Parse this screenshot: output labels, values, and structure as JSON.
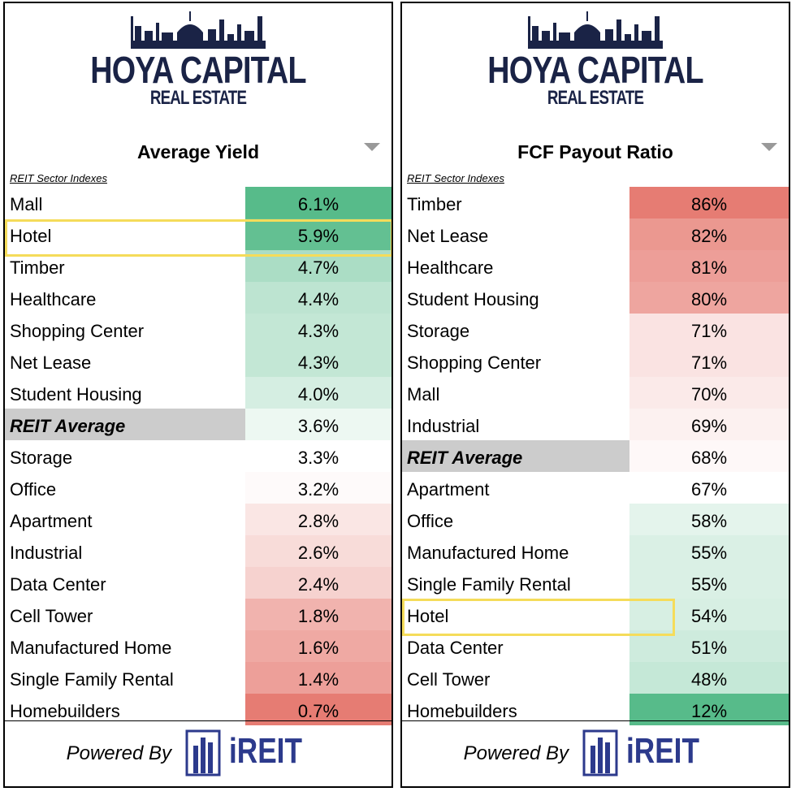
{
  "brand": {
    "line1": "HOYA CAPITAL",
    "line2": "REAL ESTATE"
  },
  "footer": {
    "powered_by": "Powered By",
    "ireit": "iREIT"
  },
  "colors": {
    "brand_navy": "#1a2346",
    "ireit_blue": "#2c3a8c",
    "high_green": "#57bb8a",
    "low_red": "#e67c73",
    "highlight": "#f5dc5a"
  },
  "left": {
    "title": "Average Yield",
    "subtitle": "REIT Sector Indexes",
    "rows": [
      {
        "name": "Mall",
        "value": "6.1%"
      },
      {
        "name": "Hotel",
        "value": "5.9%"
      },
      {
        "name": "Timber",
        "value": "4.7%"
      },
      {
        "name": "Healthcare",
        "value": "4.4%"
      },
      {
        "name": "Shopping Center",
        "value": "4.3%"
      },
      {
        "name": "Net Lease",
        "value": "4.3%"
      },
      {
        "name": "Student Housing",
        "value": "4.0%"
      },
      {
        "name": "REIT Average",
        "value": "3.6%"
      },
      {
        "name": "Storage",
        "value": "3.3%"
      },
      {
        "name": "Office",
        "value": "3.2%"
      },
      {
        "name": "Apartment",
        "value": "2.8%"
      },
      {
        "name": "Industrial",
        "value": "2.6%"
      },
      {
        "name": "Data Center",
        "value": "2.4%"
      },
      {
        "name": "Cell Tower",
        "value": "1.8%"
      },
      {
        "name": "Manufactured Home",
        "value": "1.6%"
      },
      {
        "name": "Single Family Rental",
        "value": "1.4%"
      },
      {
        "name": "Homebuilders",
        "value": "0.7%"
      }
    ]
  },
  "right": {
    "title": "FCF Payout Ratio",
    "subtitle": "REIT Sector Indexes",
    "rows": [
      {
        "name": "Timber",
        "value": "86%"
      },
      {
        "name": "Net Lease",
        "value": "82%"
      },
      {
        "name": "Healthcare",
        "value": "81%"
      },
      {
        "name": "Student Housing",
        "value": "80%"
      },
      {
        "name": "Storage",
        "value": "71%"
      },
      {
        "name": "Shopping Center",
        "value": "71%"
      },
      {
        "name": "Mall",
        "value": "70%"
      },
      {
        "name": "Industrial",
        "value": "69%"
      },
      {
        "name": "REIT Average",
        "value": "68%"
      },
      {
        "name": "Apartment",
        "value": "67%"
      },
      {
        "name": "Office",
        "value": "58%"
      },
      {
        "name": "Manufactured Home",
        "value": "55%"
      },
      {
        "name": "Single Family Rental",
        "value": "55%"
      },
      {
        "name": "Hotel",
        "value": "54%"
      },
      {
        "name": "Data Center",
        "value": "51%"
      },
      {
        "name": "Cell Tower",
        "value": "48%"
      },
      {
        "name": "Homebuilders",
        "value": "12%"
      }
    ]
  },
  "chart_data": [
    {
      "type": "table",
      "title": "Average Yield",
      "subtitle": "REIT Sector Indexes",
      "highlighted": "Hotel",
      "categories": [
        "Mall",
        "Hotel",
        "Timber",
        "Healthcare",
        "Shopping Center",
        "Net Lease",
        "Student Housing",
        "REIT Average",
        "Storage",
        "Office",
        "Apartment",
        "Industrial",
        "Data Center",
        "Cell Tower",
        "Manufactured Home",
        "Single Family Rental",
        "Homebuilders"
      ],
      "values": [
        6.1,
        5.9,
        4.7,
        4.4,
        4.3,
        4.3,
        4.0,
        3.6,
        3.3,
        3.2,
        2.8,
        2.6,
        2.4,
        1.8,
        1.6,
        1.4,
        0.7
      ],
      "unit": "%",
      "color_scale": {
        "high": "green",
        "mid": "white",
        "low": "red",
        "midpoint": 3.3
      }
    },
    {
      "type": "table",
      "title": "FCF Payout Ratio",
      "subtitle": "REIT Sector Indexes",
      "highlighted": "Hotel",
      "categories": [
        "Timber",
        "Net Lease",
        "Healthcare",
        "Student Housing",
        "Storage",
        "Shopping Center",
        "Mall",
        "Industrial",
        "REIT Average",
        "Apartment",
        "Office",
        "Manufactured Home",
        "Single Family Rental",
        "Hotel",
        "Data Center",
        "Cell Tower",
        "Homebuilders"
      ],
      "values": [
        86,
        82,
        81,
        80,
        71,
        71,
        70,
        69,
        68,
        67,
        58,
        55,
        55,
        54,
        51,
        48,
        12
      ],
      "unit": "%",
      "color_scale": {
        "high": "red",
        "mid": "white",
        "low": "green",
        "midpoint": 67
      }
    }
  ]
}
